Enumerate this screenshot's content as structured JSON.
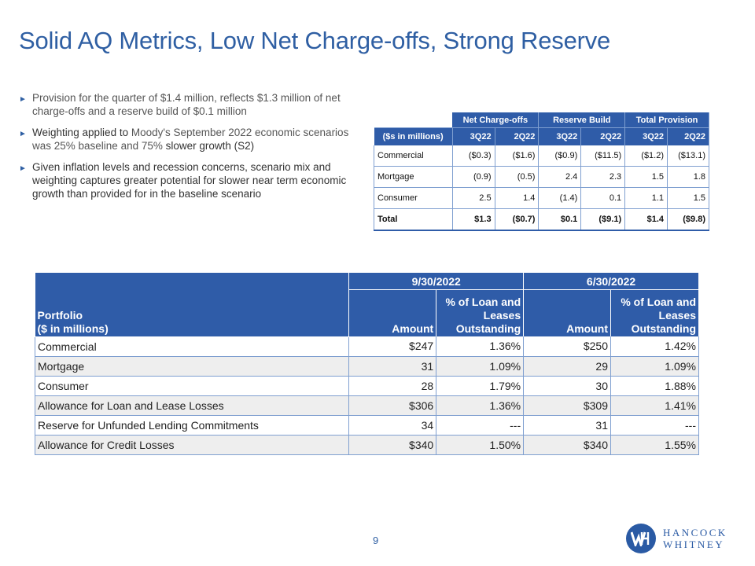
{
  "title": "Solid AQ Metrics, Low Net Charge-offs, Strong Reserve",
  "bullets": [
    {
      "text": "Provision for the quarter of $1.4 million, reflects $1.3 million of net charge-offs and a reserve build of $0.1 million"
    },
    {
      "part1": "Weighting applied to ",
      "part2": "Moody's September 2022 economic scenarios was 25% baseline and 75% ",
      "part3": "slower growth (S2)"
    },
    {
      "text": "Given inflation levels and recession concerns, scenario mix and weighting captures greater potential for slower near term economic growth than provided for in the baseline scenario"
    }
  ],
  "provision_table": {
    "groups": [
      "Net Charge-offs",
      "Reserve Build",
      "Total Provision"
    ],
    "row_header": "($s in millions)",
    "columns": [
      "3Q22",
      "2Q22",
      "3Q22",
      "2Q22",
      "3Q22",
      "2Q22"
    ],
    "rows": [
      {
        "label": "Commercial",
        "values": [
          "($0.3)",
          "($1.6)",
          "($0.9)",
          "($11.5)",
          "($1.2)",
          "($13.1)"
        ]
      },
      {
        "label": "Mortgage",
        "values": [
          "(0.9)",
          "(0.5)",
          "2.4",
          "2.3",
          "1.5",
          "1.8"
        ]
      },
      {
        "label": "Consumer",
        "values": [
          "2.5",
          "1.4",
          "(1.4)",
          "0.1",
          "1.1",
          "1.5"
        ]
      },
      {
        "label": "Total",
        "values": [
          "$1.3",
          "($0.7)",
          "$0.1",
          "($9.1)",
          "$1.4",
          "($9.8)"
        ]
      }
    ]
  },
  "allowance_table": {
    "portfolio_header_1": "Portfolio",
    "portfolio_header_2": "($ in millions)",
    "dates": [
      "9/30/2022",
      "6/30/2022"
    ],
    "amount_label": "Amount",
    "pct_label_1": "% of Loan and",
    "pct_label_2": "Leases",
    "pct_label_3": "Outstanding",
    "rows": [
      {
        "label": "Commercial",
        "values": [
          "$247",
          "1.36%",
          "$250",
          "1.42%"
        ]
      },
      {
        "label": "Mortgage",
        "values": [
          "31",
          "1.09%",
          "29",
          "1.09%"
        ]
      },
      {
        "label": "Consumer",
        "values": [
          "28",
          "1.79%",
          "30",
          "1.88%"
        ]
      },
      {
        "label": "Allowance for Loan and Lease Losses",
        "values": [
          "$306",
          "1.36%",
          "$309",
          "1.41%"
        ]
      },
      {
        "label": "Reserve for Unfunded Lending Commitments",
        "values": [
          "34",
          "---",
          "31",
          "---"
        ]
      },
      {
        "label": "Allowance for Credit Losses",
        "values": [
          "$340",
          "1.50%",
          "$340",
          "1.55%"
        ]
      }
    ]
  },
  "page_number": "9",
  "logo": {
    "line1": "HANCOCK",
    "line2": "WHITNEY",
    "color": "#2a5aa4"
  }
}
